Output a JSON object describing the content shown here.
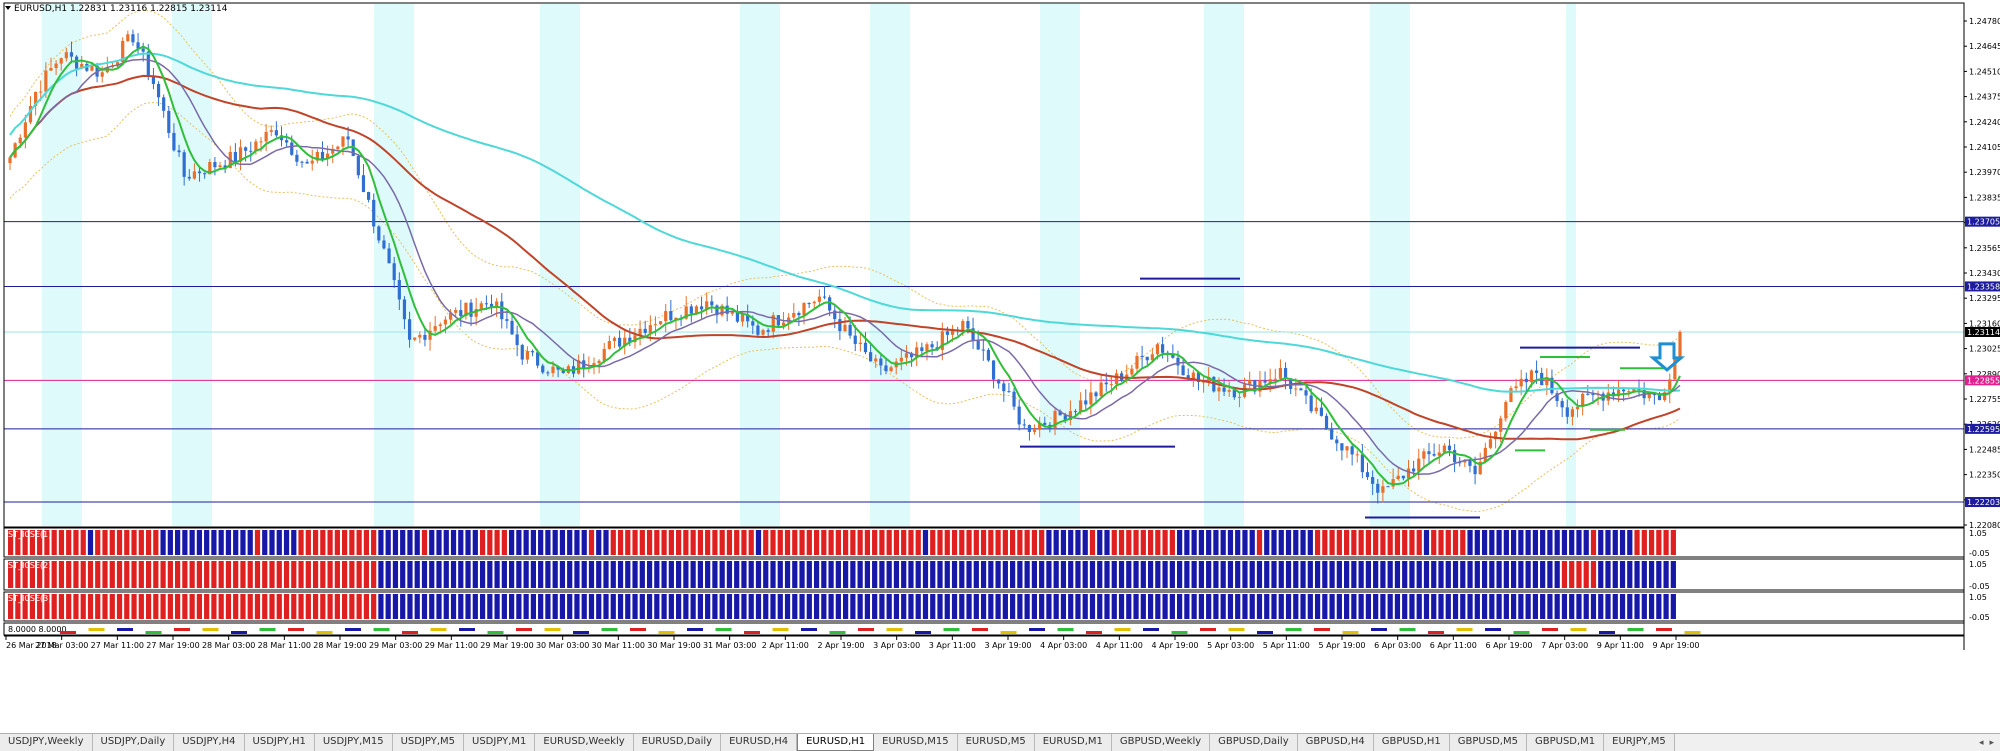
{
  "header": {
    "symbol_info": "EURUSD,H1  1.22831 1.23116 1.22815 1.23114"
  },
  "price_axis": {
    "ticks": [
      "1.24780",
      "1.24645",
      "1.24510",
      "1.24375",
      "1.24240",
      "1.24105",
      "1.23970",
      "1.23835",
      "1.23700",
      "1.23565",
      "1.23430",
      "1.23295",
      "1.23160",
      "1.23025",
      "1.22890",
      "1.22755",
      "1.22620",
      "1.22485",
      "1.22350",
      "1.22215",
      "1.22080"
    ],
    "labels": [
      {
        "text": "1.23705",
        "price": 1.23705,
        "color": "#1c1c9c"
      },
      {
        "text": "1.23358",
        "price": 1.23358,
        "color": "#1c1c9c"
      },
      {
        "text": "1.23114",
        "price": 1.23114,
        "color": "#000000"
      },
      {
        "text": "1.22855",
        "price": 1.22855,
        "color": "#e0208e"
      },
      {
        "text": "1.22595",
        "price": 1.22595,
        "color": "#1c1c9c"
      },
      {
        "text": "1.22203",
        "price": 1.22203,
        "color": "#1c1c9c"
      }
    ]
  },
  "time_axis": [
    "26 Mar 2018",
    "27 Mar 03:00",
    "27 Mar 11:00",
    "27 Mar 19:00",
    "28 Mar 03:00",
    "28 Mar 11:00",
    "28 Mar 19:00",
    "29 Mar 03:00",
    "29 Mar 11:00",
    "29 Mar 19:00",
    "30 Mar 03:00",
    "30 Mar 11:00",
    "30 Mar 19:00",
    "31 Mar 03:00",
    "2 Apr 11:00",
    "2 Apr 19:00",
    "3 Apr 03:00",
    "3 Apr 11:00",
    "3 Apr 19:00",
    "4 Apr 03:00",
    "4 Apr 11:00",
    "4 Apr 19:00",
    "5 Apr 03:00",
    "5 Apr 11:00",
    "5 Apr 19:00",
    "6 Apr 03:00",
    "6 Apr 11:00",
    "6 Apr 19:00",
    "7 Apr 03:00",
    "9 Apr 11:00",
    "9 Apr 19:00"
  ],
  "sub_panels": [
    {
      "label": "ST_ICSE(1)",
      "scale_top": "1.05",
      "scale_bottom": "-0.05"
    },
    {
      "label": "ST_ICSE(2)",
      "scale_top": "1.05",
      "scale_bottom": "-0.05"
    },
    {
      "label": "ST_ICSE(3)",
      "scale_top": "1.05",
      "scale_bottom": "-0.05"
    }
  ],
  "bottom_indicator": {
    "label": "8.0000 8.0000"
  },
  "colors": {
    "bull": "#e8702a",
    "bear": "#2f6fd1",
    "ma_fast": "#2fbf3a",
    "ma_mid": "#7a6aa8",
    "ma_slow": "#c0442a",
    "ma_long": "#4fd8d8",
    "session": "#dffafb",
    "hline": "#1c1c9c",
    "pinkline": "#e0208e",
    "panel_red": "#e02020",
    "panel_blue": "#1818a8"
  },
  "tabs": [
    "USDJPY,Weekly",
    "USDJPY,Daily",
    "USDJPY,H4",
    "USDJPY,H1",
    "USDJPY,M15",
    "USDJPY,M5",
    "USDJPY,M1",
    "EURUSD,Weekly",
    "EURUSD,Daily",
    "EURUSD,H4",
    "EURUSD,H1",
    "EURUSD,M15",
    "EURUSD,M5",
    "EURUSD,M1",
    "GBPUSD,Weekly",
    "GBPUSD,Daily",
    "GBPUSD,H4",
    "GBPUSD,H1",
    "GBPUSD,M5",
    "GBPUSD,M1",
    "EURJPY,M5"
  ],
  "active_tab": "EURUSD,H1",
  "scroll_glyphs": [
    "◂",
    "▸"
  ]
}
